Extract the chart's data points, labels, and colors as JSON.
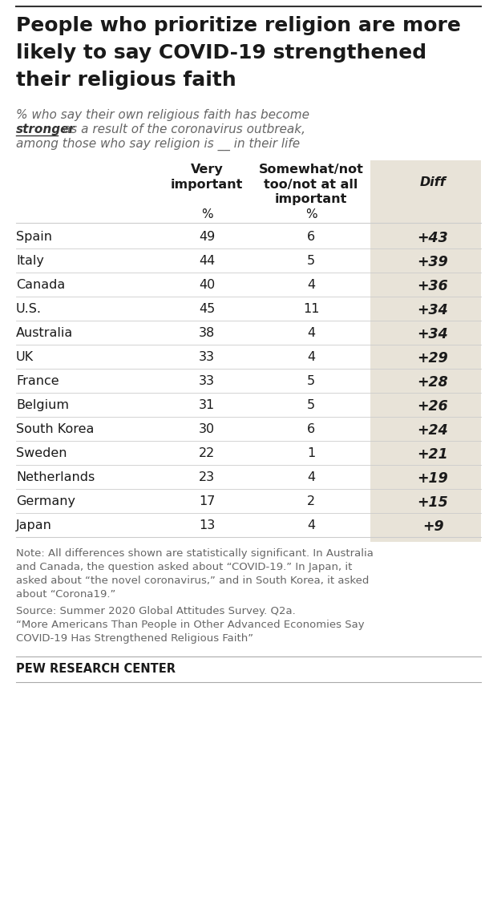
{
  "title_lines": [
    "People who prioritize religion are more",
    "likely to say COVID-19 strengthened",
    "their religious faith"
  ],
  "subtitle_line1": "% who say their own religious faith has become",
  "subtitle_line2a": "stronger",
  "subtitle_line2b": " as a result of the coronavirus outbreak,",
  "subtitle_line3": "among those who say religion is __ in their life",
  "col1_header": "Very\nimportant",
  "col2_header": "Somewhat/not\ntoo/not at all\nimportant",
  "col3_header": "Diff",
  "countries": [
    "Spain",
    "Italy",
    "Canada",
    "U.S.",
    "Australia",
    "UK",
    "France",
    "Belgium",
    "South Korea",
    "Sweden",
    "Netherlands",
    "Germany",
    "Japan"
  ],
  "very_important": [
    49,
    44,
    40,
    45,
    38,
    33,
    33,
    31,
    30,
    22,
    23,
    17,
    13
  ],
  "somewhat_important": [
    6,
    5,
    4,
    11,
    4,
    4,
    5,
    5,
    6,
    1,
    4,
    2,
    4
  ],
  "diff": [
    "+43",
    "+39",
    "+36",
    "+34",
    "+34",
    "+29",
    "+28",
    "+26",
    "+24",
    "+21",
    "+19",
    "+15",
    "+9"
  ],
  "note_line1": "Note: All differences shown are statistically significant. In Australia",
  "note_line2": "and Canada, the question asked about “COVID-19.” In Japan, it",
  "note_line3": "asked about “the novel coronavirus,” and in South Korea, it asked",
  "note_line4": "about “Corona19.”",
  "source_line1": "Source: Summer 2020 Global Attitudes Survey. Q2a.",
  "source_line2": "“More Americans Than People in Other Advanced Economies Say",
  "source_line3": "COVID-19 Has Strengthened Religious Faith”",
  "branding": "PEW RESEARCH CENTER",
  "bg_color": "#ffffff",
  "diff_col_bg": "#e8e3d8",
  "text_color": "#1a1a1a",
  "note_color": "#666666",
  "title_color": "#1a1a1a",
  "subtitle_color": "#666666",
  "stronger_color": "#333333",
  "top_line_color": "#333333",
  "bottom_line_color": "#aaaaaa",
  "sep_line_color": "#cccccc"
}
